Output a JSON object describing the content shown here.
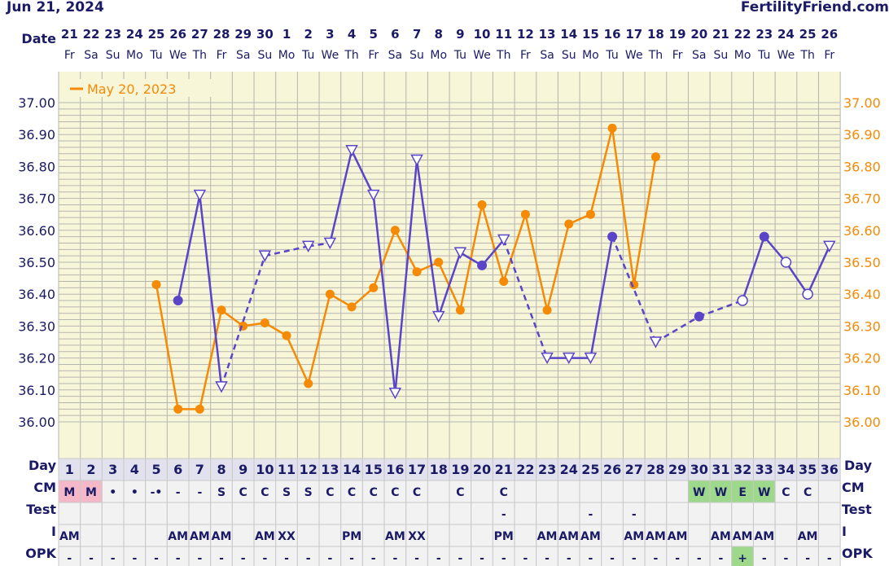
{
  "header": {
    "date_text": "Jun 21, 2024",
    "site_text": "FertilityFriend.com"
  },
  "labels": {
    "date": "Date",
    "day": "Day",
    "cm": "CM",
    "test": "Test",
    "intercourse": "I",
    "opk": "OPK"
  },
  "colors": {
    "background": "#f8f6d8",
    "grid": "#b5b5b0",
    "current_cycle": "#5a44c8",
    "overlay_cycle": "#f58a07",
    "text": "#1a1a66",
    "cm_menstrual": "#f4b8c8",
    "fertile_green": "#9ed88a",
    "row_bg": "#f2f2f2"
  },
  "date_row": {
    "dates": [
      "21",
      "22",
      "23",
      "24",
      "25",
      "26",
      "27",
      "28",
      "29",
      "30",
      "1",
      "2",
      "3",
      "4",
      "5",
      "6",
      "7",
      "8",
      "9",
      "10",
      "11",
      "12",
      "13",
      "14",
      "15",
      "16",
      "17",
      "18",
      "19",
      "20",
      "21",
      "22",
      "23",
      "24",
      "25",
      "26"
    ],
    "weekdays": [
      "Fr",
      "Sa",
      "Su",
      "Mo",
      "Tu",
      "We",
      "Th",
      "Fr",
      "Sa",
      "Su",
      "Mo",
      "Tu",
      "We",
      "Th",
      "Fr",
      "Sa",
      "Su",
      "Mo",
      "Tu",
      "We",
      "Th",
      "Fr",
      "Sa",
      "Su",
      "Mo",
      "Tu",
      "We",
      "Th",
      "Fr",
      "Sa",
      "Su",
      "Mo",
      "Tu",
      "We",
      "Th",
      "Fr"
    ]
  },
  "chart_data": {
    "type": "line",
    "title": "",
    "ylabel": "",
    "ylim": [
      35.98,
      37.02
    ],
    "y_ticks": [
      "37.00",
      "36.90",
      "36.80",
      "36.70",
      "36.60",
      "36.50",
      "36.40",
      "36.30",
      "36.20",
      "36.10",
      "36.00"
    ],
    "x": [
      1,
      2,
      3,
      4,
      5,
      6,
      7,
      8,
      9,
      10,
      11,
      12,
      13,
      14,
      15,
      16,
      17,
      18,
      19,
      20,
      21,
      22,
      23,
      24,
      25,
      26,
      27,
      28,
      29,
      30,
      31,
      32,
      33,
      34,
      35,
      36
    ],
    "legend": {
      "overlay_label": "May 20, 2023",
      "position": "top-left"
    },
    "series": [
      {
        "role": "current",
        "points": [
          {
            "day": 6,
            "value": 36.38,
            "marker": "filled"
          },
          {
            "day": 7,
            "value": 36.71,
            "marker": "triangle"
          },
          {
            "day": 8,
            "value": 36.11,
            "marker": "triangle"
          },
          {
            "day": 10,
            "value": 36.52,
            "marker": "triangle"
          },
          {
            "day": 12,
            "value": 36.55,
            "marker": "triangle"
          },
          {
            "day": 13,
            "value": 36.56,
            "marker": "triangle"
          },
          {
            "day": 14,
            "value": 36.85,
            "marker": "triangle"
          },
          {
            "day": 15,
            "value": 36.71,
            "marker": "triangle"
          },
          {
            "day": 16,
            "value": 36.09,
            "marker": "triangle"
          },
          {
            "day": 17,
            "value": 36.82,
            "marker": "triangle"
          },
          {
            "day": 18,
            "value": 36.33,
            "marker": "triangle"
          },
          {
            "day": 19,
            "value": 36.53,
            "marker": "triangle"
          },
          {
            "day": 20,
            "value": 36.49,
            "marker": "filled"
          },
          {
            "day": 21,
            "value": 36.57,
            "marker": "triangle"
          },
          {
            "day": 23,
            "value": 36.2,
            "marker": "triangle"
          },
          {
            "day": 24,
            "value": 36.2,
            "marker": "triangle"
          },
          {
            "day": 25,
            "value": 36.2,
            "marker": "triangle"
          },
          {
            "day": 26,
            "value": 36.58,
            "marker": "filled"
          },
          {
            "day": 28,
            "value": 36.25,
            "marker": "triangle"
          },
          {
            "day": 30,
            "value": 36.33,
            "marker": "filled"
          },
          {
            "day": 32,
            "value": 36.38,
            "marker": "open"
          },
          {
            "day": 33,
            "value": 36.58,
            "marker": "filled"
          },
          {
            "day": 34,
            "value": 36.5,
            "marker": "open"
          },
          {
            "day": 35,
            "value": 36.4,
            "marker": "open"
          },
          {
            "day": 36,
            "value": 36.55,
            "marker": "triangle"
          }
        ],
        "segments": [
          [
            6,
            7,
            "solid"
          ],
          [
            7,
            8,
            "solid"
          ],
          [
            8,
            10,
            "dashed"
          ],
          [
            10,
            12,
            "dashed"
          ],
          [
            12,
            13,
            "dashed"
          ],
          [
            13,
            14,
            "solid"
          ],
          [
            14,
            15,
            "solid"
          ],
          [
            15,
            16,
            "solid"
          ],
          [
            16,
            17,
            "solid"
          ],
          [
            17,
            18,
            "solid"
          ],
          [
            18,
            19,
            "solid"
          ],
          [
            19,
            20,
            "solid"
          ],
          [
            20,
            21,
            "solid"
          ],
          [
            21,
            23,
            "dashed"
          ],
          [
            23,
            24,
            "solid"
          ],
          [
            24,
            25,
            "solid"
          ],
          [
            25,
            26,
            "solid"
          ],
          [
            26,
            28,
            "dashed"
          ],
          [
            28,
            30,
            "dashed"
          ],
          [
            30,
            32,
            "dashed"
          ],
          [
            32,
            33,
            "solid"
          ],
          [
            33,
            34,
            "solid"
          ],
          [
            34,
            35,
            "solid"
          ],
          [
            35,
            36,
            "solid"
          ]
        ]
      },
      {
        "role": "overlay",
        "name": "May 20, 2023",
        "points": [
          {
            "day": 5,
            "value": 36.43
          },
          {
            "day": 6,
            "value": 36.04
          },
          {
            "day": 7,
            "value": 36.04
          },
          {
            "day": 8,
            "value": 36.35
          },
          {
            "day": 9,
            "value": 36.3
          },
          {
            "day": 10,
            "value": 36.31
          },
          {
            "day": 11,
            "value": 36.27
          },
          {
            "day": 12,
            "value": 36.12
          },
          {
            "day": 13,
            "value": 36.4
          },
          {
            "day": 14,
            "value": 36.36
          },
          {
            "day": 15,
            "value": 36.42
          },
          {
            "day": 16,
            "value": 36.6
          },
          {
            "day": 17,
            "value": 36.47
          },
          {
            "day": 18,
            "value": 36.5
          },
          {
            "day": 19,
            "value": 36.35
          },
          {
            "day": 20,
            "value": 36.68
          },
          {
            "day": 21,
            "value": 36.44
          },
          {
            "day": 22,
            "value": 36.65
          },
          {
            "day": 23,
            "value": 36.35
          },
          {
            "day": 24,
            "value": 36.62
          },
          {
            "day": 25,
            "value": 36.65
          },
          {
            "day": 26,
            "value": 36.92
          },
          {
            "day": 27,
            "value": 36.43
          },
          {
            "day": 28,
            "value": 36.83
          }
        ]
      }
    ]
  },
  "rows": {
    "days": [
      "1",
      "2",
      "3",
      "4",
      "5",
      "6",
      "7",
      "8",
      "9",
      "10",
      "11",
      "12",
      "13",
      "14",
      "15",
      "16",
      "17",
      "18",
      "19",
      "20",
      "21",
      "22",
      "23",
      "24",
      "25",
      "26",
      "27",
      "28",
      "29",
      "30",
      "31",
      "32",
      "33",
      "34",
      "35",
      "36"
    ],
    "cm": [
      "M",
      "M",
      "•",
      "•",
      "-•",
      "-",
      "-",
      "S",
      "C",
      "C",
      "S",
      "S",
      "C",
      "C",
      "C",
      "C",
      "C",
      "",
      "C",
      "",
      "C",
      "",
      "",
      "",
      "",
      "",
      "",
      "",
      "",
      "W",
      "W",
      "E",
      "W",
      "C",
      "C",
      ""
    ],
    "cm_highlight": [
      "pink",
      "pink",
      "",
      "",
      "",
      "",
      "",
      "",
      "",
      "",
      "",
      "",
      "",
      "",
      "",
      "",
      "",
      "",
      "",
      "",
      "",
      "",
      "",
      "",
      "",
      "",
      "",
      "",
      "",
      "green",
      "green",
      "green",
      "green",
      "",
      "",
      ""
    ],
    "test": [
      "",
      "",
      "",
      "",
      "",
      "",
      "",
      "",
      "",
      "",
      "",
      "",
      "",
      "",
      "",
      "",
      "",
      "",
      "",
      "",
      "-",
      "",
      "",
      "",
      "-",
      "",
      "-",
      "",
      "",
      "",
      "",
      "",
      "",
      "",
      "",
      ""
    ],
    "intercourse": [
      "AM",
      "",
      "",
      "",
      "",
      "AM",
      "AM",
      "AM",
      "",
      "AM",
      "XX",
      "",
      "",
      "PM",
      "",
      "AM",
      "XX",
      "",
      "",
      "",
      "PM",
      "",
      "AM",
      "AM",
      "AM",
      "",
      "AM",
      "AM",
      "AM",
      "",
      "AM",
      "AM",
      "AM",
      "",
      "AM",
      ""
    ],
    "opk": [
      "-",
      "-",
      "-",
      "-",
      "-",
      "-",
      "-",
      "-",
      "-",
      "-",
      "-",
      "-",
      "-",
      "-",
      "-",
      "-",
      "-",
      "-",
      "-",
      "-",
      "-",
      "-",
      "-",
      "-",
      "-",
      "-",
      "-",
      "-",
      "-",
      "-",
      "-",
      "+",
      "-",
      "-",
      "-",
      "-"
    ],
    "opk_highlight_day": "32"
  }
}
